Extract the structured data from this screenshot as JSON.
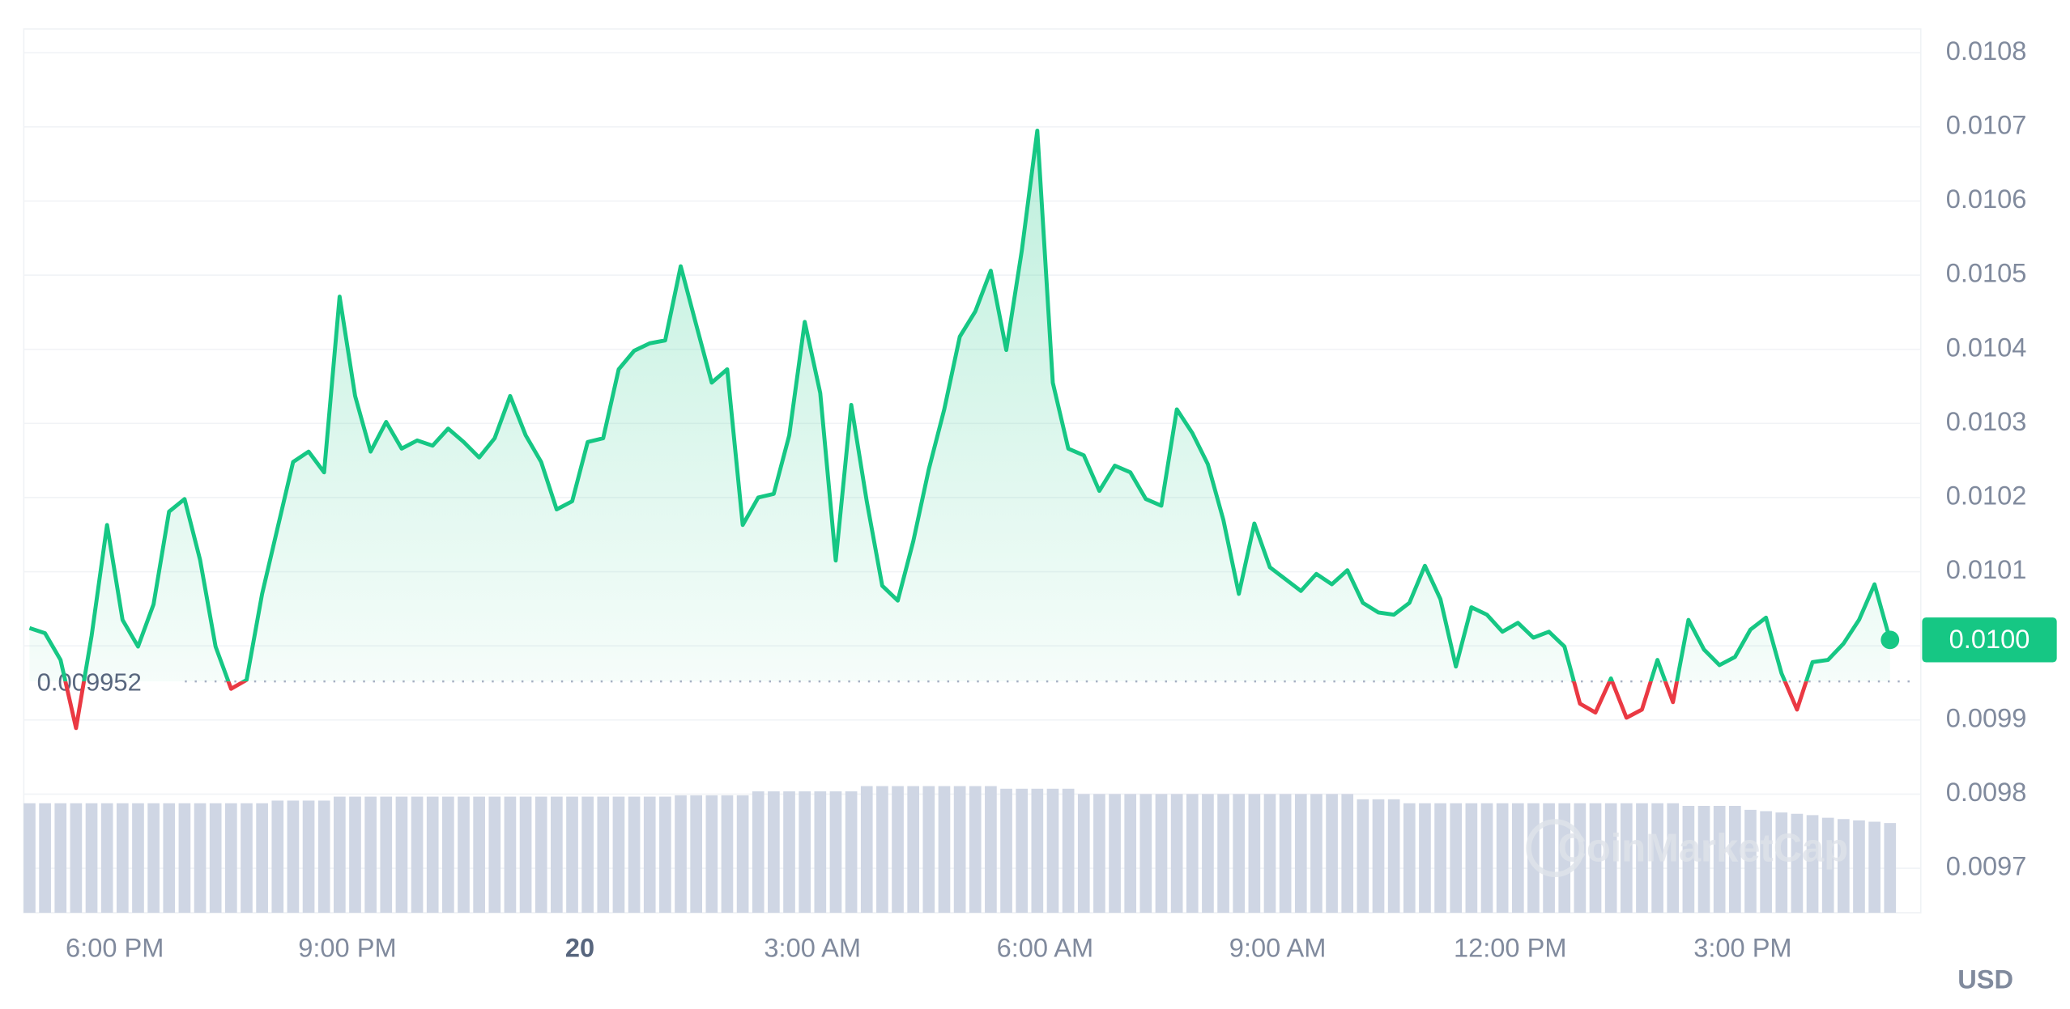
{
  "chart_data": {
    "type": "line",
    "color": "#16c784",
    "down_color": "#ea3943",
    "baseline": 0.009952,
    "axis_label": "USD",
    "watermark": "CoinMarketCap",
    "xlim": [
      16.86,
      41.28
    ],
    "ylim": [
      0.00964,
      0.010832
    ],
    "grid": true,
    "xticks": [
      {
        "value": 18,
        "label": "6:00 PM"
      },
      {
        "value": 21,
        "label": "9:00 PM"
      },
      {
        "value": 24,
        "label": "20",
        "bold": true
      },
      {
        "value": 27,
        "label": "3:00 AM"
      },
      {
        "value": 30,
        "label": "6:00 AM"
      },
      {
        "value": 33,
        "label": "9:00 AM"
      },
      {
        "value": 36,
        "label": "12:00 PM"
      },
      {
        "value": 39,
        "label": "3:00 PM"
      }
    ],
    "yticks": [
      0.0108,
      0.0107,
      0.0106,
      0.0105,
      0.0104,
      0.0103,
      0.0102,
      0.0101,
      {
        "value": 0.01,
        "label": "0.0100"
      },
      0.0099,
      0.0098,
      0.0097
    ],
    "x": [
      16.9,
      17.1,
      17.3,
      17.5,
      17.7,
      17.9,
      18.1,
      18.3,
      18.5,
      18.7,
      18.9,
      19.1,
      19.3,
      19.5,
      19.7,
      19.9,
      20.1,
      20.3,
      20.5,
      20.7,
      20.9,
      21.1,
      21.3,
      21.5,
      21.7,
      21.9,
      22.1,
      22.3,
      22.5,
      22.7,
      22.9,
      23.1,
      23.3,
      23.5,
      23.7,
      23.9,
      24.1,
      24.3,
      24.5,
      24.7,
      24.9,
      25.1,
      25.3,
      25.5,
      25.7,
      25.9,
      26.1,
      26.3,
      26.5,
      26.7,
      26.9,
      27.1,
      27.3,
      27.5,
      27.7,
      27.9,
      28.1,
      28.3,
      28.5,
      28.7,
      28.9,
      29.1,
      29.3,
      29.5,
      29.7,
      29.9,
      30.1,
      30.3,
      30.5,
      30.7,
      30.9,
      31.1,
      31.3,
      31.5,
      31.7,
      31.9,
      32.1,
      32.3,
      32.5,
      32.7,
      32.9,
      33.1,
      33.3,
      33.5,
      33.7,
      33.9,
      34.1,
      34.3,
      34.5,
      34.7,
      34.9,
      35.1,
      35.3,
      35.5,
      35.7,
      35.9,
      36.1,
      36.3,
      36.5,
      36.7,
      36.9,
      37.1,
      37.3,
      37.5,
      37.7,
      37.9,
      38.1,
      38.3,
      38.5,
      38.7,
      38.9,
      39.1,
      39.3,
      39.5,
      39.7,
      39.9,
      40.1,
      40.3,
      40.5,
      40.7,
      40.9
    ],
    "values": [
      0.010024,
      0.010017,
      0.009981,
      0.009889,
      0.010013,
      0.010163,
      0.010035,
      0.009999,
      0.010056,
      0.010181,
      0.010198,
      0.010116,
      0.009999,
      0.009942,
      0.009954,
      0.01007,
      0.010159,
      0.010248,
      0.010262,
      0.010234,
      0.010471,
      0.010337,
      0.010262,
      0.010302,
      0.010266,
      0.010277,
      0.01027,
      0.010293,
      0.010275,
      0.010254,
      0.01028,
      0.010337,
      0.010284,
      0.010248,
      0.010184,
      0.010195,
      0.010275,
      0.01028,
      0.010373,
      0.010398,
      0.010408,
      0.010412,
      0.010512,
      0.010433,
      0.010355,
      0.010373,
      0.010163,
      0.0102,
      0.010205,
      0.010284,
      0.010437,
      0.010341,
      0.010115,
      0.010325,
      0.010195,
      0.010081,
      0.010061,
      0.010141,
      0.010238,
      0.010319,
      0.010417,
      0.010451,
      0.010506,
      0.010399,
      0.010533,
      0.010695,
      0.010355,
      0.010266,
      0.010257,
      0.010209,
      0.010243,
      0.010234,
      0.010198,
      0.010189,
      0.010319,
      0.010287,
      0.010245,
      0.01017,
      0.01007,
      0.010165,
      0.010106,
      0.01009,
      0.010074,
      0.010097,
      0.010083,
      0.010102,
      0.010058,
      0.010045,
      0.010042,
      0.010058,
      0.010108,
      0.010063,
      0.009972,
      0.010052,
      0.010042,
      0.010019,
      0.010031,
      0.010011,
      0.010019,
      0.009999,
      0.009922,
      0.00991,
      0.009956,
      0.009903,
      0.009914,
      0.009981,
      0.009924,
      0.010035,
      0.009995,
      0.009974,
      0.009985,
      0.010022,
      0.010038,
      0.009963,
      0.009914,
      0.009978,
      0.009981,
      0.010003,
      0.010035,
      0.010083,
      0.010008
    ],
    "value_labels": [
      null,
      null,
      null,
      null,
      null,
      null,
      null,
      null,
      null,
      null,
      null,
      null,
      null,
      null,
      null,
      null,
      null,
      null,
      null,
      null,
      null,
      null,
      null,
      null,
      null,
      null,
      null,
      null,
      null,
      null,
      null,
      null,
      null,
      null,
      null,
      null,
      null,
      null,
      null,
      null,
      null,
      null,
      null,
      null,
      null,
      null,
      null,
      null,
      null,
      null,
      null,
      null,
      null,
      null,
      null,
      null,
      null,
      null,
      null,
      null,
      null,
      null,
      null,
      null,
      null,
      null,
      null,
      null,
      null,
      null,
      null,
      null,
      null,
      null,
      null,
      null,
      null,
      null,
      null,
      null,
      null,
      null,
      null,
      null,
      null,
      null,
      null,
      null,
      null,
      null,
      null,
      null,
      null,
      null,
      null,
      null,
      null,
      null,
      null,
      null,
      null,
      null,
      null,
      null,
      null,
      null,
      null,
      null,
      null,
      null,
      null,
      null,
      null,
      null,
      null,
      null,
      null,
      null,
      null,
      null,
      "0.0100"
    ],
    "volume_color": "#cfd6e4",
    "volume_lim": [
      0,
      100
    ],
    "volume": [
      83,
      83,
      83,
      83,
      83,
      83,
      83,
      83,
      83,
      83,
      83,
      83,
      83,
      83,
      83,
      83,
      85,
      85,
      85,
      85,
      88,
      88,
      88,
      88,
      88,
      88,
      88,
      88,
      88,
      88,
      88,
      88,
      88,
      88,
      88,
      88,
      88,
      88,
      88,
      88,
      88,
      88,
      89,
      89,
      89,
      89,
      89,
      92,
      92,
      92,
      92,
      92,
      92,
      92,
      96,
      96,
      96,
      96,
      96,
      96,
      96,
      96,
      96,
      94,
      94,
      94,
      94,
      94,
      90,
      90,
      90,
      90,
      90,
      90,
      90,
      90,
      90,
      90,
      90,
      90,
      90,
      90,
      90,
      90,
      90,
      90,
      86,
      86,
      86,
      83,
      83,
      83,
      83,
      83,
      83,
      83,
      83,
      83,
      83,
      83,
      83,
      83,
      83,
      83,
      83,
      83,
      83,
      81,
      81,
      81,
      81,
      78,
      77,
      76,
      75,
      74,
      72,
      71,
      70,
      69,
      68
    ]
  }
}
